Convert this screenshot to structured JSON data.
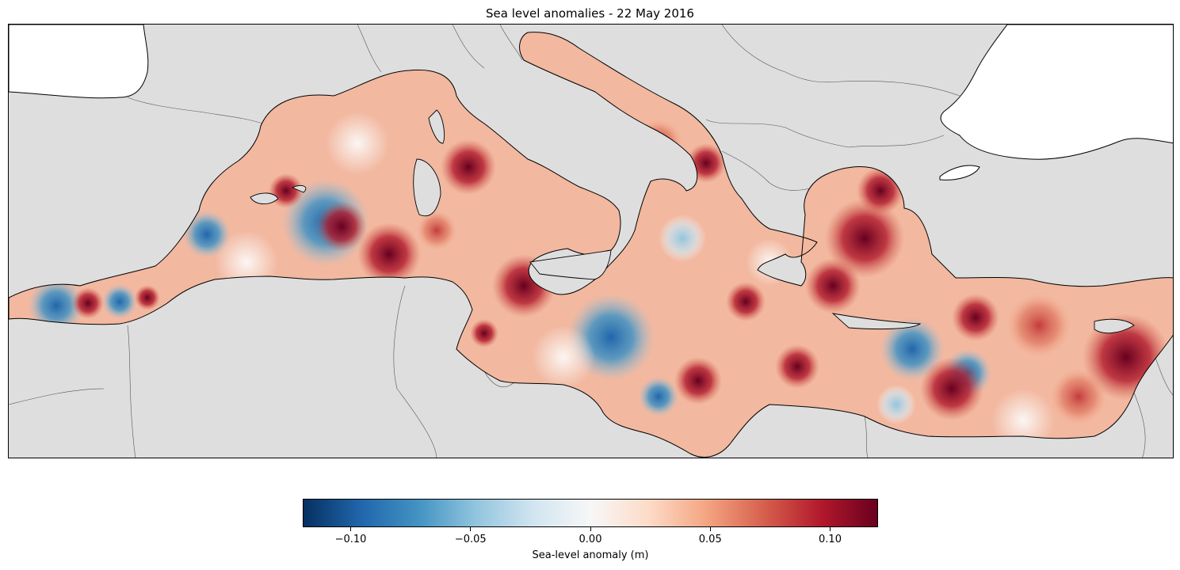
{
  "title": "Sea level anomalies - 22 May 2016",
  "colorbar": {
    "label": "Sea-level anomaly (m)",
    "min": -0.12,
    "max": 0.12,
    "colormap": "RdBu_r",
    "ticks": [
      -0.1,
      -0.05,
      0.0,
      0.05,
      0.1
    ],
    "tick_labels": [
      "−0.10",
      "−0.05",
      "0.00",
      "0.05",
      "0.10"
    ],
    "colors": [
      "#053061",
      "#2166ac",
      "#4393c3",
      "#92c5de",
      "#d1e5f0",
      "#f7f7f7",
      "#fddbc7",
      "#f4a582",
      "#d6604d",
      "#b2182b",
      "#67001f"
    ]
  },
  "map": {
    "region": "Mediterranean Sea",
    "land_color": "#dedede",
    "outside_color": "#ffffff"
  }
}
